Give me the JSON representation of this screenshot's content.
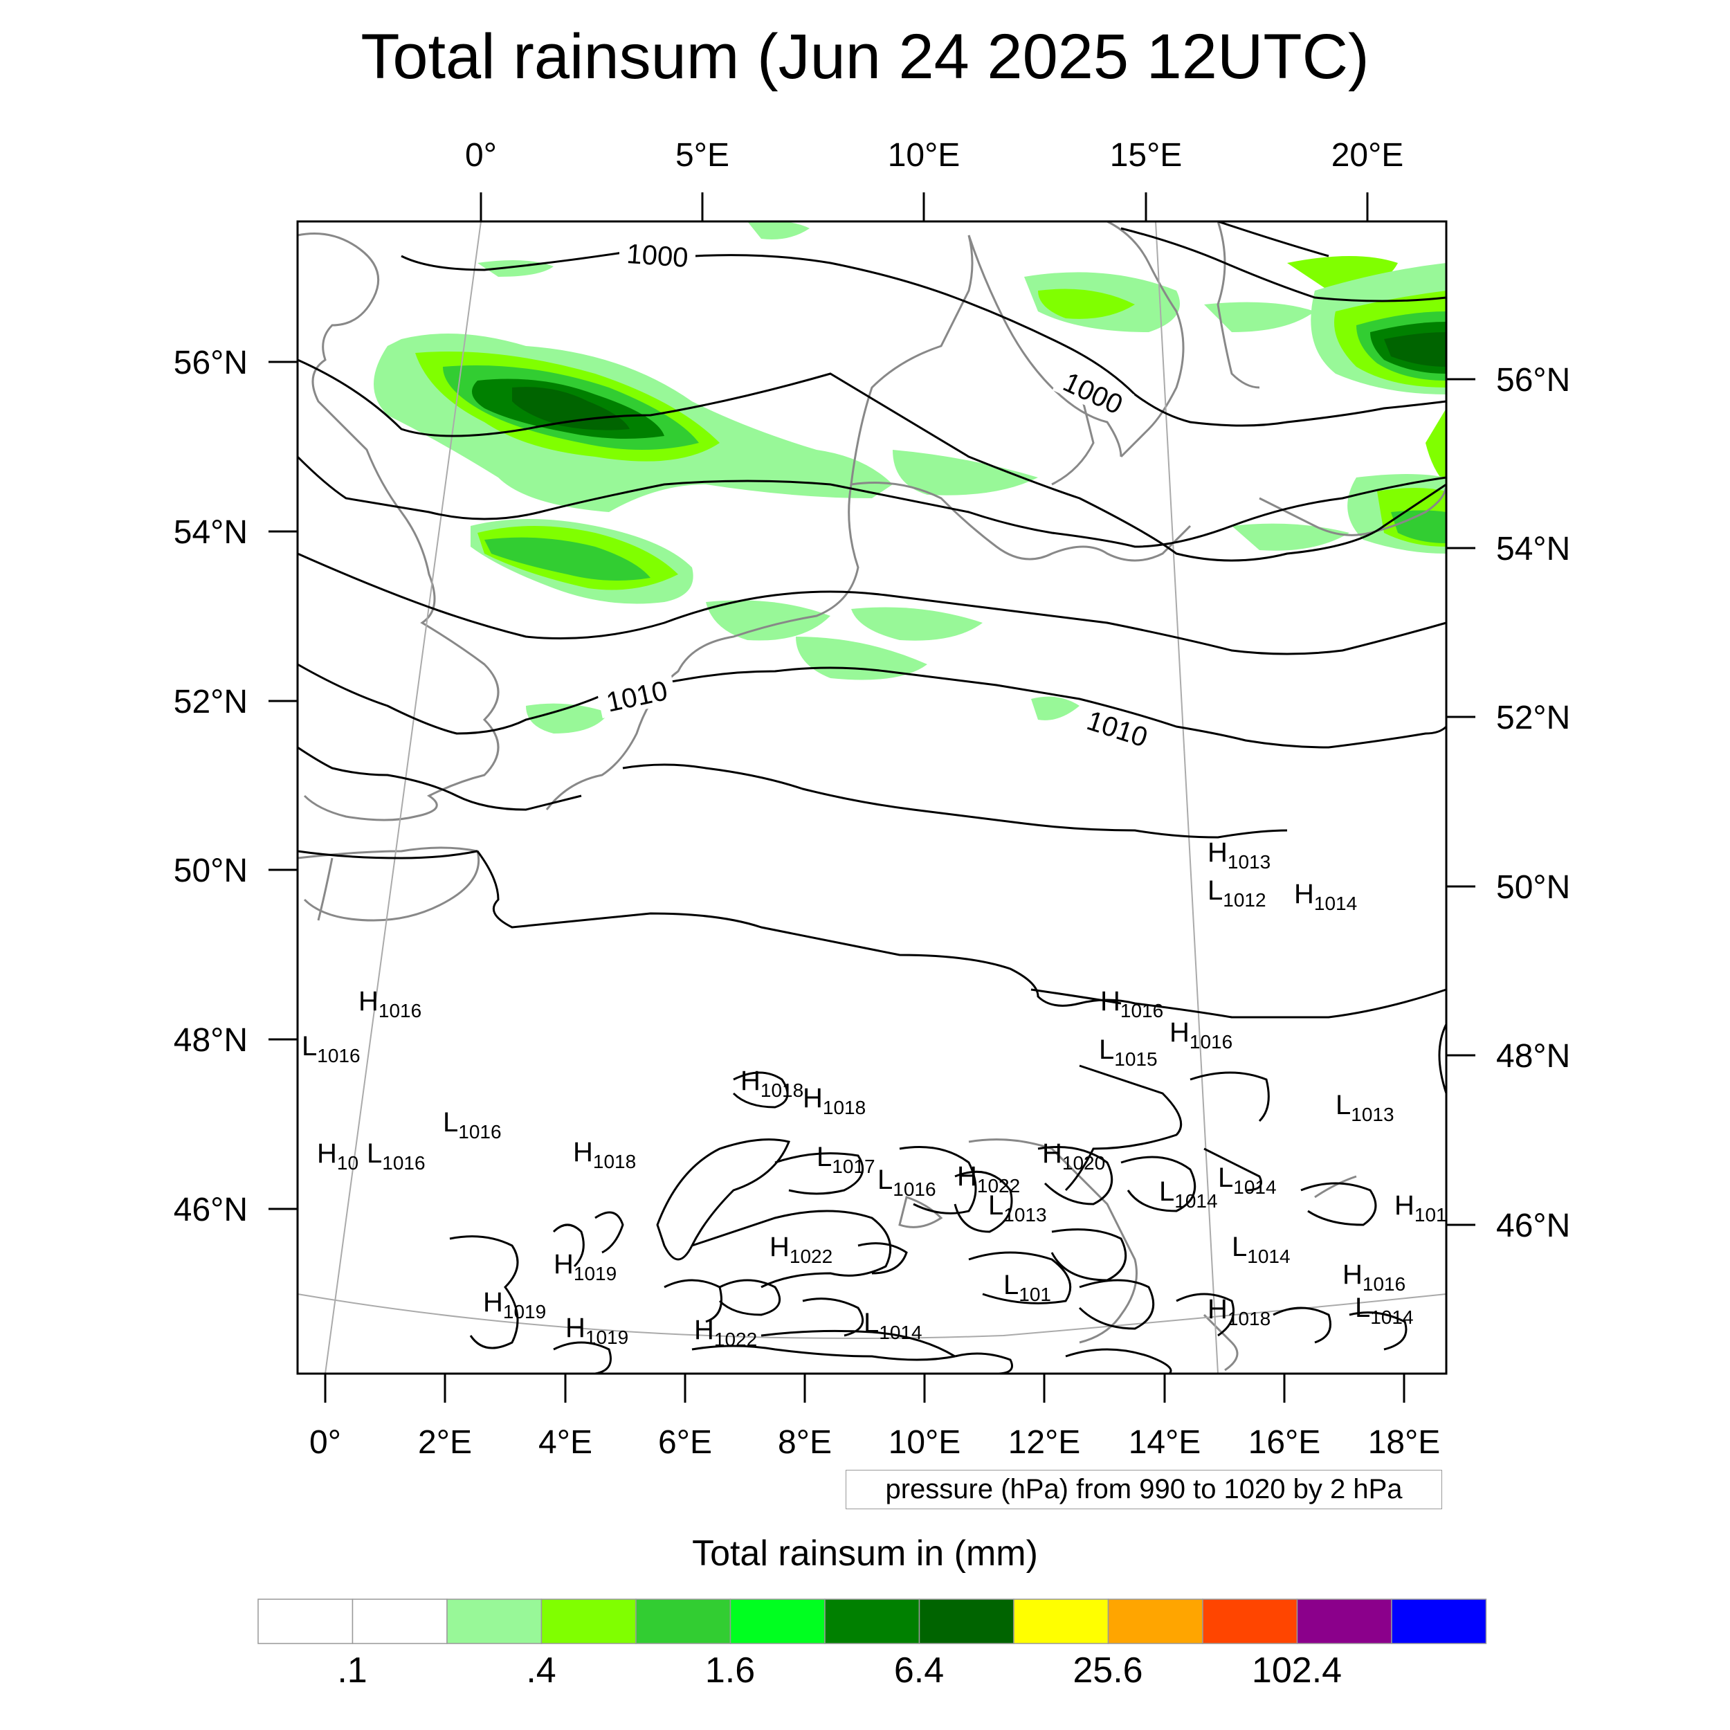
{
  "title": "Total rainsum (Jun 24 2025 12UTC)",
  "map": {
    "top_lon_labels": [
      "0°",
      "5°E",
      "10°E",
      "15°E",
      "20°E"
    ],
    "bottom_lon_labels": [
      "0°",
      "2°E",
      "4°E",
      "6°E",
      "8°E",
      "10°E",
      "12°E",
      "14°E",
      "16°E",
      "18°E"
    ],
    "left_lat_labels": [
      "56°N",
      "54°N",
      "52°N",
      "50°N",
      "48°N",
      "46°N"
    ],
    "right_lat_labels": [
      "56°N",
      "54°N",
      "52°N",
      "50°N",
      "48°N",
      "46°N"
    ],
    "isobar_labels": [
      "1000",
      "1000",
      "1010",
      "1010"
    ],
    "pressure_centers": [
      {
        "type": "H",
        "value": "1013"
      },
      {
        "type": "L",
        "value": "1012"
      },
      {
        "type": "H",
        "value": "1014"
      },
      {
        "type": "H",
        "value": "1016"
      },
      {
        "type": "L",
        "value": "1016"
      },
      {
        "type": "H",
        "value": "1016"
      },
      {
        "type": "H",
        "value": "1016"
      },
      {
        "type": "L",
        "value": "1015"
      },
      {
        "type": "H",
        "value": "1018"
      },
      {
        "type": "H",
        "value": "1018"
      },
      {
        "type": "L",
        "value": "1013"
      },
      {
        "type": "L",
        "value": "1016"
      },
      {
        "type": "H",
        "value": "10"
      },
      {
        "type": "L",
        "value": "1016"
      },
      {
        "type": "H",
        "value": "1018"
      },
      {
        "type": "L",
        "value": "1017"
      },
      {
        "type": "L",
        "value": "1016"
      },
      {
        "type": "H",
        "value": "1022"
      },
      {
        "type": "H",
        "value": "1020"
      },
      {
        "type": "L",
        "value": "1014"
      },
      {
        "type": "L",
        "value": "1014"
      },
      {
        "type": "H",
        "value": "101"
      },
      {
        "type": "L",
        "value": "1013"
      },
      {
        "type": "H",
        "value": "1022"
      },
      {
        "type": "L",
        "value": "1014"
      },
      {
        "type": "H",
        "value": "1019"
      },
      {
        "type": "L",
        "value": "101"
      },
      {
        "type": "H",
        "value": "1016"
      },
      {
        "type": "H",
        "value": "1019"
      },
      {
        "type": "H",
        "value": "1019"
      },
      {
        "type": "H",
        "value": "1022"
      },
      {
        "type": "L",
        "value": "1014"
      },
      {
        "type": "H",
        "value": "1018"
      },
      {
        "type": "L",
        "value": "1014"
      }
    ],
    "contour_note": "pressure (hPa) from 990 to 1020 by 2 hPa"
  },
  "colorbar": {
    "title": "Total rainsum in (mm)",
    "colors": [
      "#ffffff",
      "#ffffff",
      "#98f898",
      "#80ff00",
      "#32cd32",
      "#00ff20",
      "#008000",
      "#006400",
      "#ffff00",
      "#ffa500",
      "#ff4500",
      "#8b008b",
      "#0000ff"
    ],
    "tick_labels": [
      ".1",
      ".4",
      "1.6",
      "6.4",
      "25.6",
      "102.4"
    ]
  }
}
